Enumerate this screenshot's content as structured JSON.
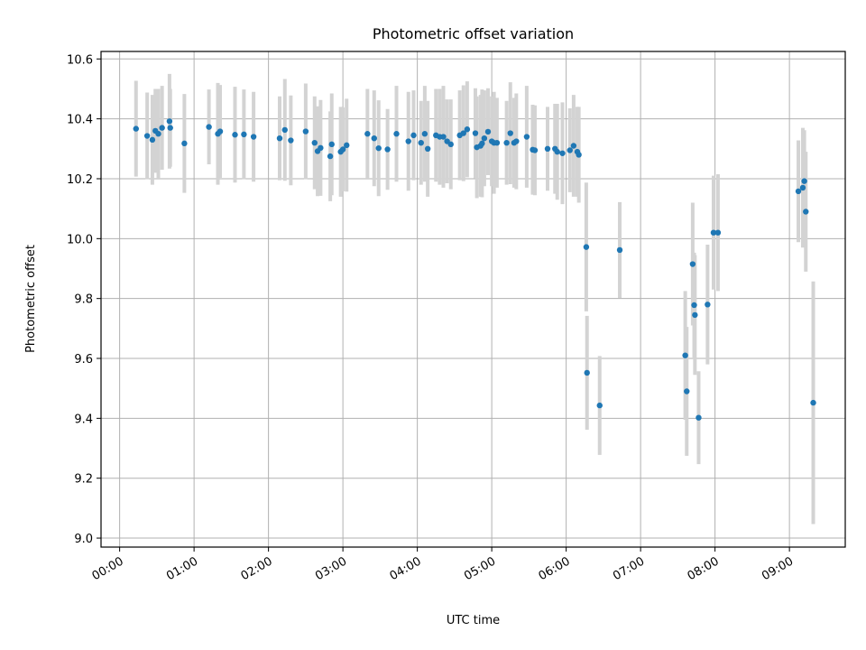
{
  "chart_data": {
    "type": "scatter",
    "title": "Photometric offset variation",
    "xlabel": "UTC time",
    "ylabel": "Photometric offset",
    "x_unit": "hours UTC",
    "xlim": [
      -0.25,
      9.75
    ],
    "ylim": [
      8.97,
      10.625
    ],
    "grid": true,
    "x_tick_values": [
      0,
      1,
      2,
      3,
      4,
      5,
      6,
      7,
      8,
      9
    ],
    "x_tick_labels": [
      "00:00",
      "01:00",
      "02:00",
      "03:00",
      "04:00",
      "05:00",
      "06:00",
      "07:00",
      "08:00",
      "09:00"
    ],
    "y_tick_values": [
      9.0,
      9.2,
      9.4,
      9.6,
      9.8,
      10.0,
      10.2,
      10.4,
      10.6
    ],
    "y_tick_labels": [
      "9.0",
      "9.2",
      "9.4",
      "9.6",
      "9.8",
      "10.0",
      "10.2",
      "10.4",
      "10.6"
    ],
    "marker_color": "#1f77b4",
    "errorbar_color": "#d3d3d3",
    "points": [
      {
        "x": 0.22,
        "y": 10.367,
        "err": 0.16
      },
      {
        "x": 0.37,
        "y": 10.343,
        "err": 0.145
      },
      {
        "x": 0.44,
        "y": 10.33,
        "err": 0.15
      },
      {
        "x": 0.48,
        "y": 10.36,
        "err": 0.14
      },
      {
        "x": 0.52,
        "y": 10.35,
        "err": 0.15
      },
      {
        "x": 0.57,
        "y": 10.37,
        "err": 0.14
      },
      {
        "x": 0.67,
        "y": 10.392,
        "err": 0.158
      },
      {
        "x": 0.68,
        "y": 10.37,
        "err": 0.13
      },
      {
        "x": 0.87,
        "y": 10.318,
        "err": 0.165
      },
      {
        "x": 1.2,
        "y": 10.373,
        "err": 0.125
      },
      {
        "x": 1.32,
        "y": 10.35,
        "err": 0.17
      },
      {
        "x": 1.35,
        "y": 10.358,
        "err": 0.155
      },
      {
        "x": 1.55,
        "y": 10.347,
        "err": 0.16
      },
      {
        "x": 1.67,
        "y": 10.348,
        "err": 0.15
      },
      {
        "x": 1.8,
        "y": 10.34,
        "err": 0.15
      },
      {
        "x": 2.15,
        "y": 10.335,
        "err": 0.14
      },
      {
        "x": 2.22,
        "y": 10.363,
        "err": 0.17
      },
      {
        "x": 2.3,
        "y": 10.328,
        "err": 0.15
      },
      {
        "x": 2.5,
        "y": 10.358,
        "err": 0.16
      },
      {
        "x": 2.62,
        "y": 10.32,
        "err": 0.155
      },
      {
        "x": 2.66,
        "y": 10.292,
        "err": 0.15
      },
      {
        "x": 2.7,
        "y": 10.303,
        "err": 0.16
      },
      {
        "x": 2.83,
        "y": 10.275,
        "err": 0.15
      },
      {
        "x": 2.85,
        "y": 10.315,
        "err": 0.17
      },
      {
        "x": 2.97,
        "y": 10.29,
        "err": 0.15
      },
      {
        "x": 3.0,
        "y": 10.298,
        "err": 0.14
      },
      {
        "x": 3.05,
        "y": 10.312,
        "err": 0.155
      },
      {
        "x": 3.33,
        "y": 10.35,
        "err": 0.15
      },
      {
        "x": 3.42,
        "y": 10.335,
        "err": 0.16
      },
      {
        "x": 3.48,
        "y": 10.302,
        "err": 0.16
      },
      {
        "x": 3.6,
        "y": 10.298,
        "err": 0.135
      },
      {
        "x": 3.72,
        "y": 10.35,
        "err": 0.16
      },
      {
        "x": 3.88,
        "y": 10.325,
        "err": 0.165
      },
      {
        "x": 3.95,
        "y": 10.345,
        "err": 0.15
      },
      {
        "x": 4.05,
        "y": 10.32,
        "err": 0.14
      },
      {
        "x": 4.1,
        "y": 10.35,
        "err": 0.16
      },
      {
        "x": 4.14,
        "y": 10.3,
        "err": 0.16
      },
      {
        "x": 4.25,
        "y": 10.345,
        "err": 0.155
      },
      {
        "x": 4.3,
        "y": 10.34,
        "err": 0.16
      },
      {
        "x": 4.35,
        "y": 10.34,
        "err": 0.17
      },
      {
        "x": 4.4,
        "y": 10.325,
        "err": 0.14
      },
      {
        "x": 4.45,
        "y": 10.315,
        "err": 0.15
      },
      {
        "x": 4.57,
        "y": 10.345,
        "err": 0.15
      },
      {
        "x": 4.62,
        "y": 10.352,
        "err": 0.16
      },
      {
        "x": 4.67,
        "y": 10.365,
        "err": 0.16
      },
      {
        "x": 4.78,
        "y": 10.352,
        "err": 0.15
      },
      {
        "x": 4.8,
        "y": 10.305,
        "err": 0.17
      },
      {
        "x": 4.85,
        "y": 10.31,
        "err": 0.17
      },
      {
        "x": 4.87,
        "y": 10.318,
        "err": 0.18
      },
      {
        "x": 4.9,
        "y": 10.335,
        "err": 0.16
      },
      {
        "x": 4.95,
        "y": 10.357,
        "err": 0.145
      },
      {
        "x": 5.0,
        "y": 10.325,
        "err": 0.15
      },
      {
        "x": 5.03,
        "y": 10.32,
        "err": 0.17
      },
      {
        "x": 5.07,
        "y": 10.32,
        "err": 0.15
      },
      {
        "x": 5.2,
        "y": 10.32,
        "err": 0.14
      },
      {
        "x": 5.25,
        "y": 10.352,
        "err": 0.17
      },
      {
        "x": 5.3,
        "y": 10.32,
        "err": 0.15
      },
      {
        "x": 5.33,
        "y": 10.325,
        "err": 0.16
      },
      {
        "x": 5.47,
        "y": 10.34,
        "err": 0.17
      },
      {
        "x": 5.55,
        "y": 10.297,
        "err": 0.15
      },
      {
        "x": 5.58,
        "y": 10.295,
        "err": 0.15
      },
      {
        "x": 5.75,
        "y": 10.3,
        "err": 0.14
      },
      {
        "x": 5.85,
        "y": 10.3,
        "err": 0.15
      },
      {
        "x": 5.88,
        "y": 10.29,
        "err": 0.16
      },
      {
        "x": 5.95,
        "y": 10.285,
        "err": 0.17
      },
      {
        "x": 6.05,
        "y": 10.295,
        "err": 0.14
      },
      {
        "x": 6.1,
        "y": 10.31,
        "err": 0.17
      },
      {
        "x": 6.15,
        "y": 10.29,
        "err": 0.15
      },
      {
        "x": 6.17,
        "y": 10.28,
        "err": 0.16
      },
      {
        "x": 6.27,
        "y": 9.972,
        "err": 0.215
      },
      {
        "x": 6.28,
        "y": 9.552,
        "err": 0.19
      },
      {
        "x": 6.45,
        "y": 9.443,
        "err": 0.165
      },
      {
        "x": 6.72,
        "y": 9.962,
        "err": 0.16
      },
      {
        "x": 7.6,
        "y": 9.61,
        "err": 0.215
      },
      {
        "x": 7.62,
        "y": 9.49,
        "err": 0.215
      },
      {
        "x": 7.7,
        "y": 9.915,
        "err": 0.205
      },
      {
        "x": 7.72,
        "y": 9.778,
        "err": 0.175
      },
      {
        "x": 7.73,
        "y": 9.745,
        "err": 0.2
      },
      {
        "x": 7.78,
        "y": 9.402,
        "err": 0.155
      },
      {
        "x": 7.9,
        "y": 9.78,
        "err": 0.2
      },
      {
        "x": 7.98,
        "y": 10.02,
        "err": 0.19
      },
      {
        "x": 8.04,
        "y": 10.02,
        "err": 0.195
      },
      {
        "x": 9.12,
        "y": 10.158,
        "err": 0.17
      },
      {
        "x": 9.18,
        "y": 10.17,
        "err": 0.2
      },
      {
        "x": 9.2,
        "y": 10.192,
        "err": 0.17
      },
      {
        "x": 9.22,
        "y": 10.09,
        "err": 0.2
      },
      {
        "x": 9.32,
        "y": 9.452,
        "err": 0.405
      }
    ]
  }
}
